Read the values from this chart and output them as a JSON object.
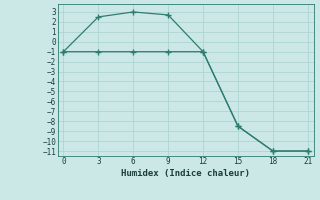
{
  "line1_x": [
    0,
    3,
    6,
    9,
    12,
    15,
    18,
    21
  ],
  "line1_y": [
    -1,
    2.5,
    3,
    2.7,
    -1,
    -8.5,
    -11,
    -11
  ],
  "line2_x": [
    0,
    3,
    6,
    9,
    12,
    15,
    18,
    21
  ],
  "line2_y": [
    -1,
    -1,
    -1,
    -1,
    -1,
    -8.5,
    -11,
    -11
  ],
  "color": "#2e7d6e",
  "bg_color": "#cce8e6",
  "grid_color": "#afd4d0",
  "xlabel": "Humidex (Indice chaleur)",
  "xlim": [
    -0.5,
    21.5
  ],
  "ylim": [
    -11.5,
    3.8
  ],
  "xticks": [
    0,
    3,
    6,
    9,
    12,
    15,
    18,
    21
  ],
  "yticks": [
    3,
    2,
    1,
    0,
    -1,
    -2,
    -3,
    -4,
    -5,
    -6,
    -7,
    -8,
    -9,
    -10,
    -11
  ]
}
